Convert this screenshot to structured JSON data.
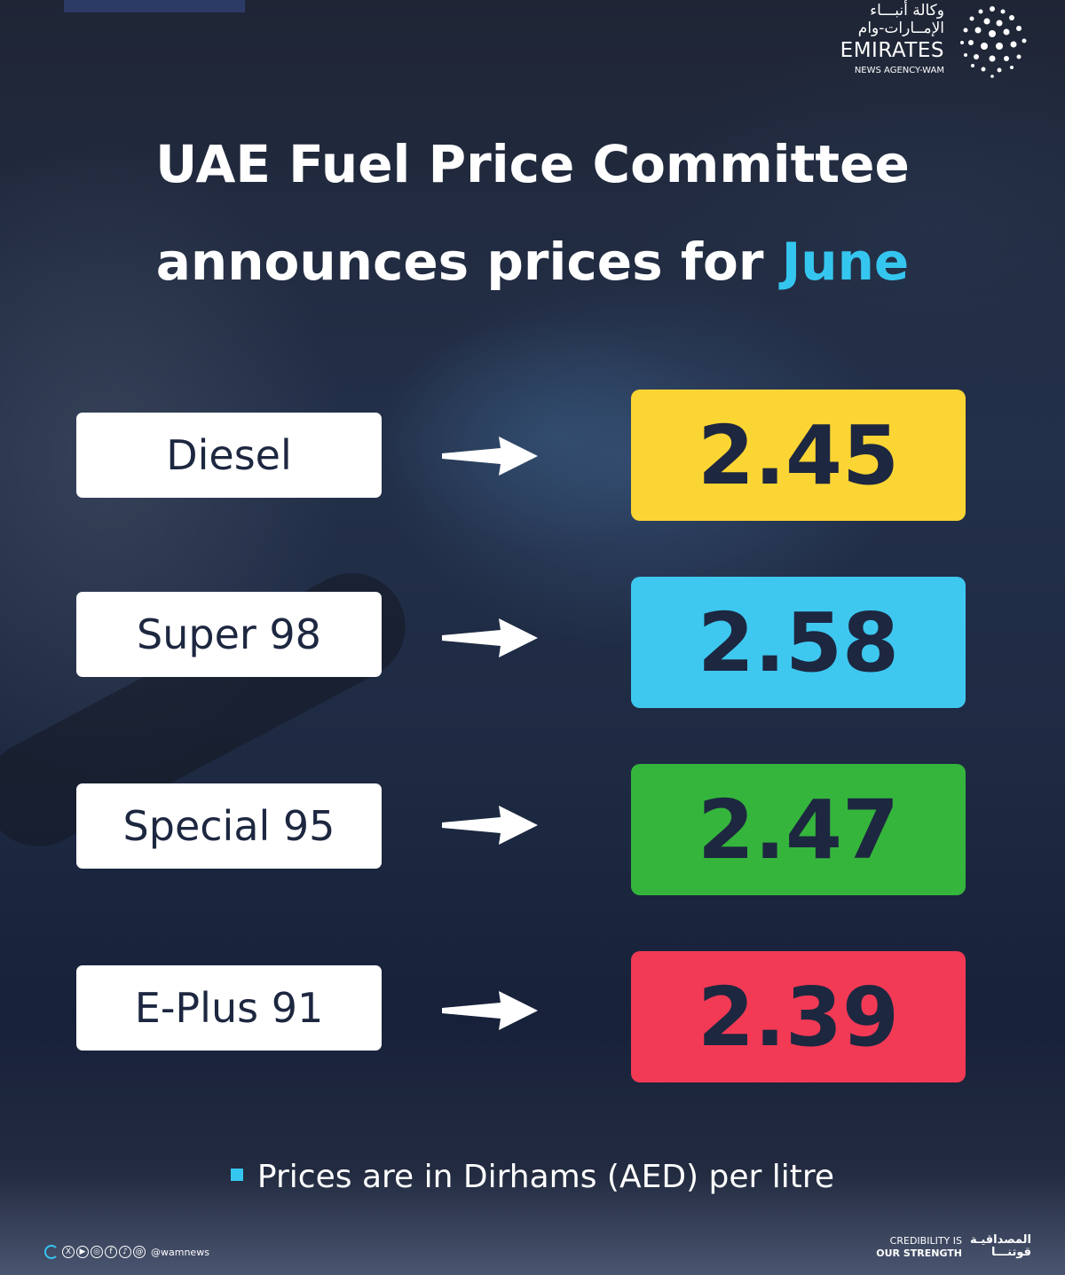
{
  "logo": {
    "arabic_line1": "وكالة أنبـــاء",
    "arabic_line2": "الإمــارات-وام",
    "english_name": "EMIRATES",
    "english_sub": "NEWS AGENCY-WAM"
  },
  "headline": {
    "line1": "UAE Fuel Price Committee",
    "line2_prefix": "announces prices for ",
    "line2_accent": "June"
  },
  "fuel_prices": [
    {
      "label": "Diesel",
      "price": "2.45",
      "color": "#fbd533"
    },
    {
      "label": "Super 98",
      "price": "2.58",
      "color": "#3ec8f0"
    },
    {
      "label": "Special 95",
      "price": "2.47",
      "color": "#35b53c"
    },
    {
      "label": "E-Plus 91",
      "price": "2.39",
      "color": "#f23a55"
    }
  ],
  "note": "Prices are in Dirhams (AED) per litre",
  "footer": {
    "social_handle": "@wamnews",
    "social_icons": [
      "x-icon",
      "youtube-icon",
      "instagram-icon",
      "facebook-icon",
      "tiktok-icon",
      "threads-icon"
    ],
    "credibility_en_line1": "CREDIBILITY IS",
    "credibility_en_line2": "OUR STRENGTH",
    "credibility_ar_line1": "المصداقيـة",
    "credibility_ar_line2": "قوتنـــا"
  },
  "colors": {
    "accent": "#35c6ef",
    "text_dark": "#1d2740"
  }
}
